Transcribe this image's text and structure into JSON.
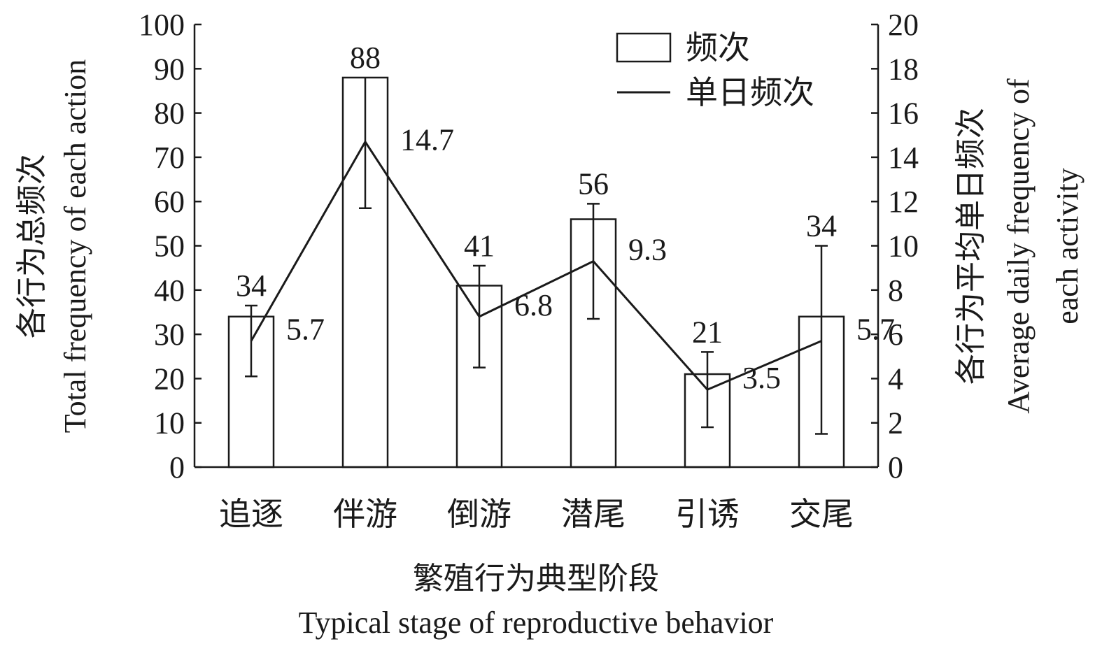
{
  "chart_data": {
    "type": "bar",
    "categories": [
      "追逐",
      "伴游",
      "倒游",
      "潜尾",
      "引诱",
      "交尾"
    ],
    "series": [
      {
        "name": "频次",
        "kind": "bar",
        "axis": "left",
        "values": [
          34,
          88,
          41,
          56,
          21,
          34
        ],
        "error_high": [
          36.5,
          88,
          45.5,
          59.5,
          26,
          50
        ],
        "error_low": [
          20.5,
          58.5,
          22.5,
          33.5,
          9,
          7.5
        ],
        "labels": [
          "34",
          "88",
          "41",
          "56",
          "21",
          "34"
        ]
      },
      {
        "name": "单日频次",
        "kind": "line",
        "axis": "right",
        "values": [
          5.7,
          14.7,
          6.8,
          9.3,
          3.5,
          5.7
        ],
        "labels": [
          "5.7",
          "14.7",
          "6.8",
          "9.3",
          "3.5",
          "5.7"
        ]
      }
    ],
    "y_left": {
      "label_cn": "各行为总频次",
      "label_en": "Total frequency of each action",
      "range": [
        0,
        100
      ],
      "ticks": [
        "0",
        "10",
        "20",
        "30",
        "40",
        "50",
        "60",
        "70",
        "80",
        "90",
        "100"
      ]
    },
    "y_right": {
      "label_cn": "各行为平均单日频次",
      "label_en_1": "Average daily frequency of",
      "label_en_2": "each activity",
      "range": [
        0,
        20
      ],
      "ticks": [
        "0",
        "2",
        "4",
        "6",
        "8",
        "10",
        "12",
        "14",
        "16",
        "18",
        "20"
      ]
    },
    "x_axis": {
      "label_cn": "繁殖行为典型阶段",
      "label_en": "Typical stage of reproductive behavior"
    },
    "legend": {
      "placement": "top-right",
      "items": [
        "频次",
        "单日频次"
      ]
    },
    "grid": false
  }
}
